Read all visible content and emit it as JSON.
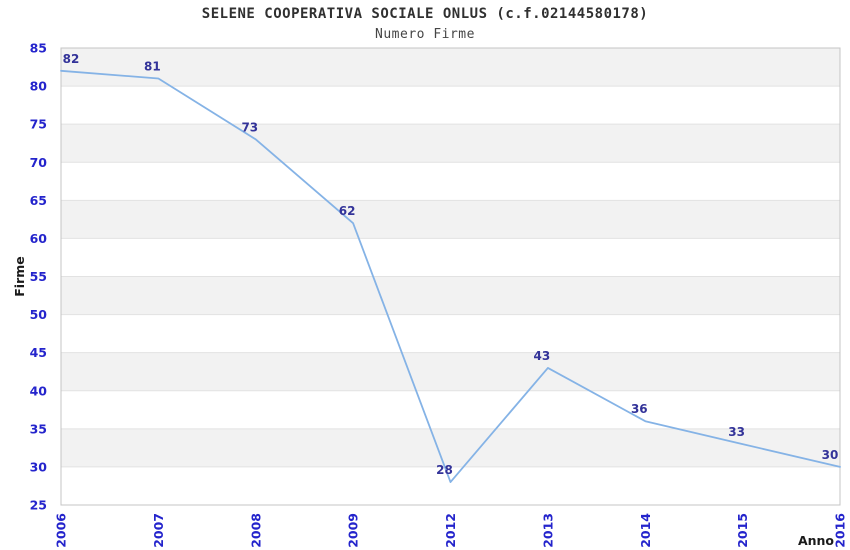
{
  "chart_data": {
    "type": "line",
    "title": "SELENE COOPERATIVA SOCIALE ONLUS (c.f.02144580178)",
    "subtitle": "Numero Firme",
    "categories": [
      "2006",
      "2007",
      "2008",
      "2009",
      "2012",
      "2013",
      "2014",
      "2015",
      "2016"
    ],
    "values": [
      82,
      81,
      73,
      62,
      28,
      43,
      36,
      33,
      30
    ],
    "xlabel": "Anno",
    "ylabel": "Firme",
    "ylim": [
      25,
      85
    ],
    "ytick_step": 5,
    "grid": true,
    "band_fill": true,
    "legend": "none",
    "colors": {
      "line": "#85b3e6",
      "tick_label": "#2424cc",
      "data_label": "#333399",
      "band": "#f2f2f2",
      "gridline": "#e2e2e2",
      "plot_border": "#c4c4c4",
      "axis_title": "#1a1a1a",
      "background": "#ffffff"
    }
  }
}
